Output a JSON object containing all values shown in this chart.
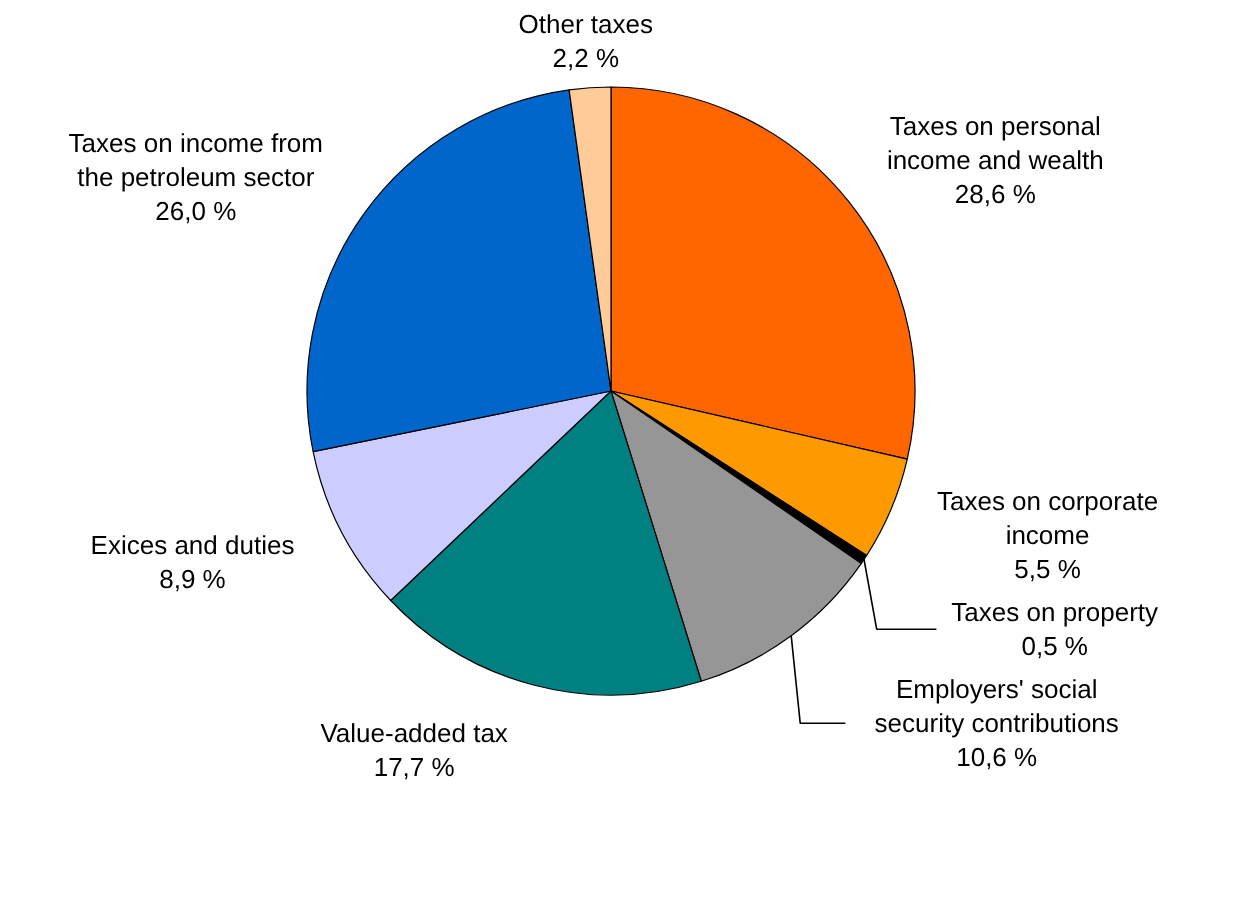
{
  "chart_data": {
    "type": "pie",
    "categories": [
      "Taxes on personal income and wealth",
      "Taxes on corporate income",
      "Taxes on property",
      "Employers' social security contributions",
      "Value-added tax",
      "Exices and duties",
      "Taxes on income from the petroleum sector",
      "Other taxes"
    ],
    "values": [
      28.6,
      5.5,
      0.5,
      10.6,
      17.7,
      8.9,
      26.0,
      2.2
    ],
    "value_labels": [
      "28,6 %",
      "5,5 %",
      "0,5 %",
      "10,6 %",
      "17,7 %",
      "8,9 %",
      "26,0 %",
      "2,2 %"
    ],
    "colors": [
      "#ff6600",
      "#ff9900",
      "#000000",
      "#969696",
      "#008080",
      "#ccccff",
      "#0066cc",
      "#ffcc99"
    ]
  }
}
